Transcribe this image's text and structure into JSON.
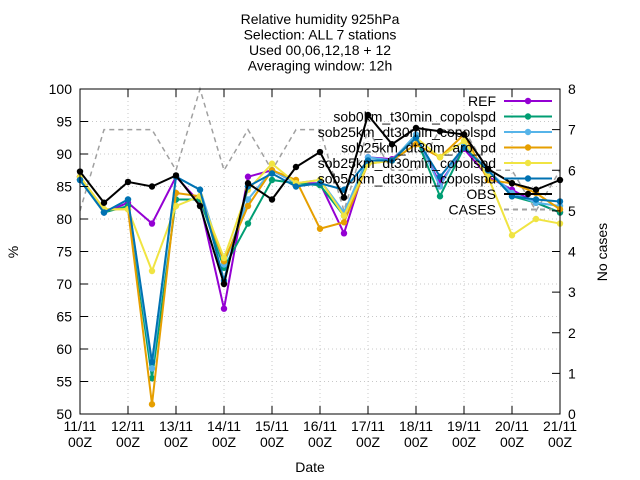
{
  "chart_data": {
    "type": "line",
    "title_lines": [
      "Relative humidity 925hPa",
      "Selection: ALL       7 stations",
      "Used 00,06,12,18 + 12",
      "Averaging window: 12h"
    ],
    "xlabel": "Date",
    "ylabel": "%",
    "y2label": "No cases",
    "ylim": [
      50,
      100
    ],
    "y2lim": [
      0,
      8
    ],
    "x_ticks": [
      "11/11\n00Z",
      "12/11\n00Z",
      "13/11\n00Z",
      "14/11\n00Z",
      "15/11\n00Z",
      "16/11\n00Z",
      "17/11\n00Z",
      "18/11\n00Z",
      "19/11\n00Z",
      "20/11\n00Z",
      "21/11\n00Z"
    ],
    "y_ticks": [
      50,
      55,
      60,
      65,
      70,
      75,
      80,
      85,
      90,
      95,
      100
    ],
    "y2_ticks": [
      0,
      1,
      2,
      3,
      4,
      5,
      6,
      7,
      8
    ],
    "x": [
      0,
      0.5,
      1,
      1.5,
      2,
      2.5,
      3,
      3.5,
      4,
      4.5,
      5,
      5.5,
      6,
      6.5,
      7,
      7.5,
      8,
      8.5,
      9,
      9.5,
      10
    ],
    "series": [
      {
        "name": "REF",
        "color": "#9400d3",
        "values": [
          86.5,
          81,
          82.5,
          79.3,
          86.5,
          82.5,
          66.2,
          86.5,
          87.5,
          85.5,
          85.5,
          77.8,
          89.5,
          89.2,
          92.5,
          85.5,
          90.8,
          86.5,
          84.5,
          82.5,
          81
        ]
      },
      {
        "name": "sob0km_t30min_copolspd",
        "color": "#009e73",
        "values": [
          86,
          81,
          82,
          55.5,
          83,
          83,
          72.5,
          79.3,
          86,
          85.5,
          85.2,
          80.5,
          89,
          89,
          92.5,
          83.5,
          91,
          87.5,
          83.5,
          82.5,
          81
        ]
      },
      {
        "name": "sob25km_dt30min_copolspd",
        "color": "#56b4e9",
        "values": [
          86,
          81,
          83,
          57,
          86.5,
          84.5,
          73,
          83,
          87.5,
          85.5,
          86,
          81,
          89.5,
          89,
          93,
          85,
          91.5,
          87.5,
          84,
          82.5,
          82
        ]
      },
      {
        "name": "sob25km_dt30m_aro_pd",
        "color": "#e69f00",
        "values": [
          86.5,
          81.5,
          81.5,
          51.5,
          84,
          83.5,
          73.5,
          82,
          87.5,
          86,
          78.5,
          79.5,
          88.5,
          89,
          91.5,
          89.5,
          93,
          86,
          85.5,
          84,
          81.5
        ]
      },
      {
        "name": "sob25km_dt30min_copolspd",
        "color": "#f0e442",
        "values": [
          86.5,
          81.5,
          81.5,
          72,
          82,
          83.5,
          74,
          84.5,
          88.5,
          85.5,
          86,
          80.5,
          88.5,
          89,
          92.5,
          89.5,
          92,
          86.5,
          77.5,
          80,
          79.3
        ]
      },
      {
        "name": "sob50km_dt30min_copolspd",
        "color": "#0072b2",
        "values": [
          86,
          81,
          83,
          58,
          86.5,
          84.5,
          70.5,
          85,
          87,
          85,
          85.5,
          84.5,
          89,
          89,
          92.5,
          86.5,
          91,
          87.5,
          83.5,
          83,
          82.7
        ]
      },
      {
        "name": "OBS",
        "color": "#000000",
        "values": [
          87.3,
          82.5,
          85.7,
          85,
          86.7,
          82,
          70,
          85.5,
          83,
          88,
          90.3,
          83.3,
          96,
          91.5,
          94,
          93.5,
          93,
          87.7,
          85.5,
          84.5,
          86
        ]
      }
    ],
    "cases": {
      "name": "CASES",
      "color": "#a0a0a0",
      "values": [
        5,
        7,
        7,
        7,
        6,
        8,
        6,
        7,
        6,
        7,
        7,
        5,
        7,
        6,
        6,
        7,
        7,
        6,
        6,
        5,
        6
      ]
    },
    "legend_placement": "top-right",
    "grid": true
  }
}
